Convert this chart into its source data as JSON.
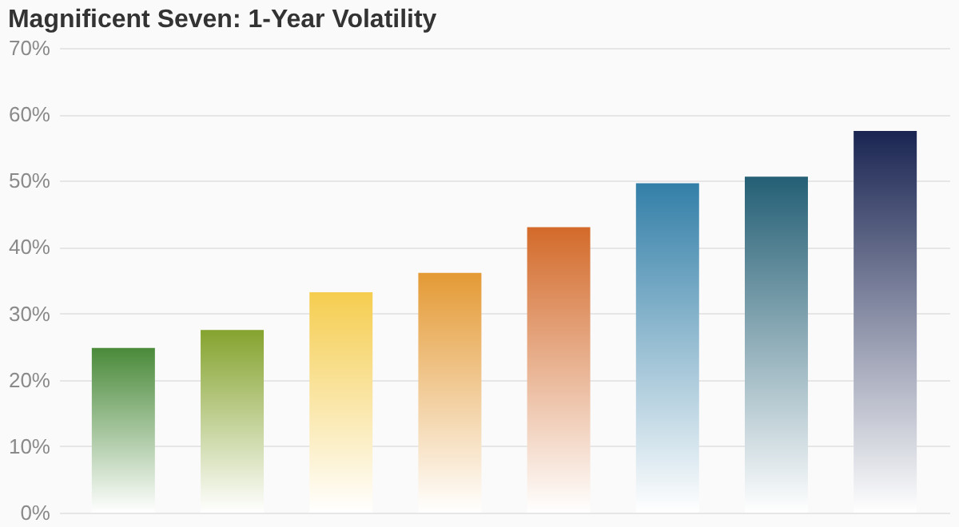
{
  "chart_data": {
    "type": "bar",
    "title": "Magnificent Seven: 1-Year Volatility",
    "categories": [
      null,
      null,
      null,
      null,
      null,
      null,
      null,
      null
    ],
    "values": [
      24.8,
      27.5,
      33.2,
      36.1,
      43.0,
      49.6,
      50.6,
      57.5
    ],
    "colors": [
      "#4a8a3a",
      "#85a32e",
      "#f5cd4f",
      "#e49a35",
      "#d36a2a",
      "#337fa8",
      "#245f75",
      "#1a2552"
    ],
    "ylim": [
      0,
      70
    ],
    "yticks": [
      {
        "value": 0,
        "label": "0%"
      },
      {
        "value": 10,
        "label": "10%"
      },
      {
        "value": 20,
        "label": "20%"
      },
      {
        "value": 30,
        "label": "30%"
      },
      {
        "value": 40,
        "label": "40%"
      },
      {
        "value": 50,
        "label": "50%"
      },
      {
        "value": 60,
        "label": "60%"
      },
      {
        "value": 70,
        "label": "70%"
      }
    ],
    "grid": "y",
    "tick_labels": "y"
  }
}
